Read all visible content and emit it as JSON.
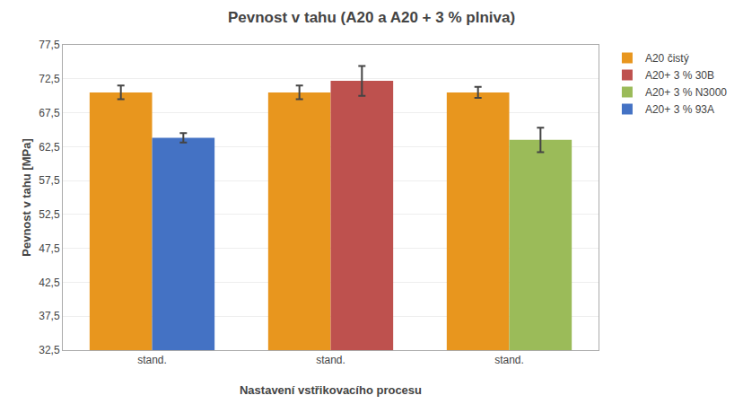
{
  "chart_data": {
    "type": "bar",
    "title": "Pevnost v tahu (A20 a A20 + 3 % plniva)",
    "xlabel": "Nastavení vstřikovacího procesu",
    "ylabel": "Pevnost v tahu [MPa]",
    "categories": [
      "stand.",
      "stand.",
      "stand."
    ],
    "series": [
      {
        "name": "A20 čistý",
        "color": "#E8961E",
        "values": [
          70.5,
          70.5,
          70.5
        ],
        "errors": [
          1.0,
          1.0,
          0.8
        ]
      },
      {
        "name": "A20+ 3 % 30B",
        "color": "#BE514E",
        "values": [
          null,
          72.2,
          null
        ],
        "errors": [
          null,
          2.2,
          null
        ]
      },
      {
        "name": "A20+ 3 % N3000",
        "color": "#9BBB59",
        "values": [
          null,
          null,
          63.5
        ],
        "errors": [
          null,
          null,
          1.8
        ]
      },
      {
        "name": "A20+ 3 % 93A",
        "color": "#4472C4",
        "values": [
          63.8,
          null,
          null
        ],
        "errors": [
          0.7,
          null,
          null
        ]
      }
    ],
    "ylim": [
      32.5,
      77.5
    ],
    "yticks": [
      {
        "value": 32.5,
        "label": "32,5"
      },
      {
        "value": 37.5,
        "label": "37,5"
      },
      {
        "value": 42.5,
        "label": "42,5"
      },
      {
        "value": 47.5,
        "label": "47,5"
      },
      {
        "value": 52.5,
        "label": "52,5"
      },
      {
        "value": 57.5,
        "label": "57,5"
      },
      {
        "value": 62.5,
        "label": "62,5"
      },
      {
        "value": 67.5,
        "label": "67,5"
      },
      {
        "value": 72.5,
        "label": "72,5"
      },
      {
        "value": 77.5,
        "label": "77,5"
      }
    ],
    "grid": true,
    "legend": "upper right"
  }
}
